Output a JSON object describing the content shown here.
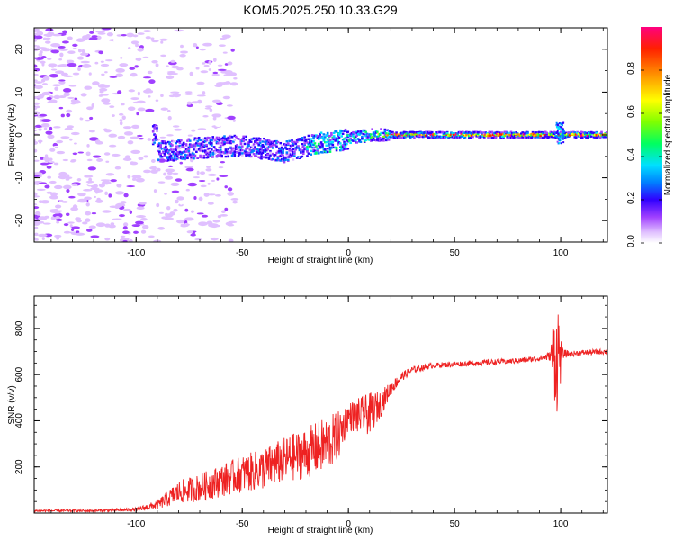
{
  "figure": {
    "title": "KOM5.2025.250.10.33.G29"
  },
  "chart_data": [
    {
      "type": "heatmap",
      "title": "KOM5.2025.250.10.33.G29",
      "xlabel": "Height of straight line (km)",
      "ylabel": "Frequency (Hz)",
      "xlim": [
        -148,
        122
      ],
      "ylim": [
        -25,
        25
      ],
      "xticks": [
        -100,
        -50,
        0,
        50,
        100
      ],
      "yticks": [
        -20,
        -10,
        0,
        10,
        20
      ],
      "colorbar": {
        "label": "Normalized spectral amplitude",
        "range": [
          0,
          1
        ],
        "ticks": [
          0.0,
          0.2,
          0.4,
          0.6,
          0.8
        ],
        "tick_labels": [
          "0.0",
          "0.2",
          "0.4",
          "0.6",
          "0.8"
        ],
        "colors": [
          "#ffffff",
          "#e0c0ff",
          "#a040ff",
          "#3000ff",
          "#0080ff",
          "#00e0ff",
          "#00ff60",
          "#80ff00",
          "#ffff00",
          "#ff9000",
          "#ff2000",
          "#ff0080"
        ]
      },
      "ridge": {
        "description_points_km_hz": [
          [
            -90,
            -4
          ],
          [
            -70,
            -3
          ],
          [
            -50,
            -2.5
          ],
          [
            -30,
            -4
          ],
          [
            -15,
            -2
          ],
          [
            0,
            -1
          ],
          [
            10,
            0
          ],
          [
            25,
            0
          ],
          [
            50,
            0
          ],
          [
            75,
            0
          ],
          [
            100,
            0
          ],
          [
            122,
            0
          ]
        ]
      }
    },
    {
      "type": "line",
      "xlabel": "Height of straight line (km)",
      "ylabel": "SNR (v/v)",
      "xlim": [
        -148,
        122
      ],
      "ylim": [
        0,
        940
      ],
      "xticks": [
        -100,
        -50,
        0,
        50,
        100
      ],
      "yticks": [
        200,
        400,
        600,
        800
      ],
      "series": [
        {
          "name": "SNR",
          "color": "#ee2222",
          "envelope_x_km": [
            -148,
            -120,
            -100,
            -90,
            -80,
            -70,
            -60,
            -50,
            -40,
            -30,
            -20,
            -10,
            -5,
            0,
            5,
            10,
            15,
            20,
            25,
            30,
            40,
            50,
            60,
            70,
            80,
            90,
            95,
            97,
            98,
            99,
            100,
            101,
            105,
            110,
            122
          ],
          "envelope_y": [
            10,
            10,
            15,
            35,
            90,
            110,
            140,
            170,
            190,
            230,
            260,
            300,
            330,
            420,
            420,
            430,
            470,
            540,
            590,
            620,
            640,
            645,
            650,
            655,
            660,
            670,
            680,
            700,
            650,
            720,
            660,
            690,
            690,
            695,
            700
          ],
          "noise_amplitude": [
            5,
            5,
            8,
            20,
            50,
            60,
            70,
            80,
            90,
            100,
            110,
            120,
            110,
            60,
            80,
            90,
            60,
            30,
            20,
            15,
            12,
            12,
            12,
            12,
            12,
            12,
            20,
            200,
            250,
            200,
            100,
            20,
            12,
            12,
            12
          ]
        }
      ]
    }
  ]
}
